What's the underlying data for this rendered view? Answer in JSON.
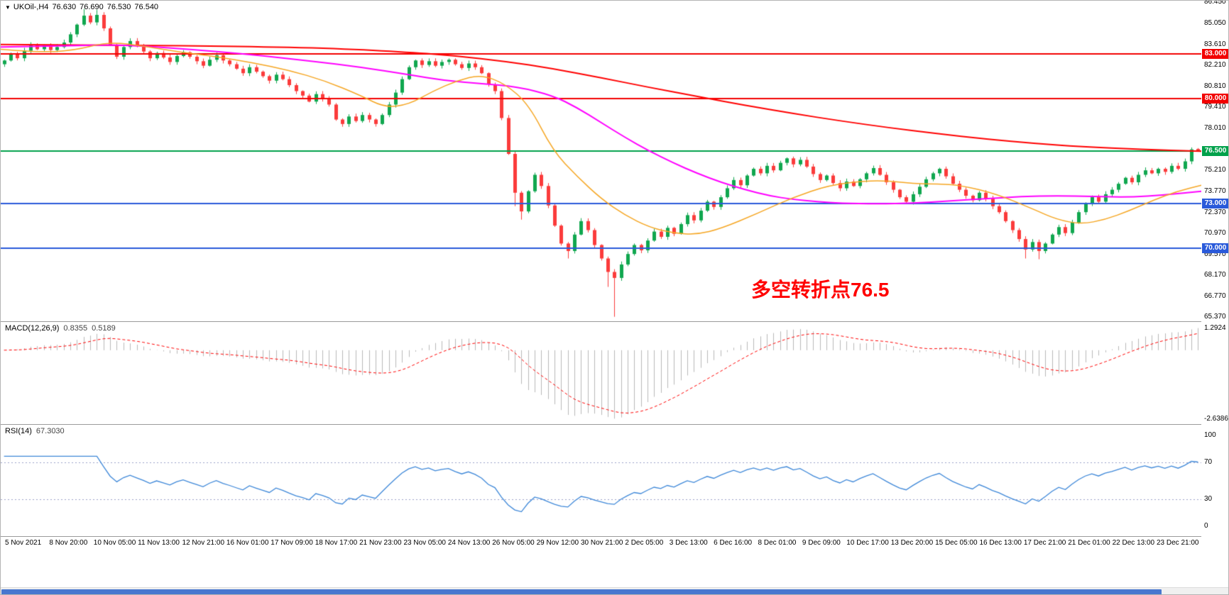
{
  "header": {
    "marker": "▼",
    "symbol": "UKOil-,H4",
    "open": "76.630",
    "high": "76.690",
    "low": "76.530",
    "close": "76.540"
  },
  "annotation": {
    "text": "多空转折点76.5",
    "color": "#ff0000"
  },
  "colors": {
    "candle_up": "#10a74f",
    "candle_down": "#fb3b3b",
    "separator": "#9b9b9b",
    "scrollbar_thumb": "#4877cf"
  },
  "chart_data": {
    "type": "candlestick",
    "title": "UKOil-,H4",
    "timeframe": "H4",
    "ylim": [
      65.1,
      86.55
    ],
    "y_ticks": [
      "86.450",
      "85.050",
      "83.610",
      "82.210",
      "80.810",
      "79.410",
      "78.010",
      "75.210",
      "73.770",
      "72.370",
      "70.970",
      "69.570",
      "68.170",
      "66.770",
      "65.370"
    ],
    "levels": [
      {
        "price": 83.0,
        "label": "83.000",
        "color": "#f20000"
      },
      {
        "price": 80.0,
        "label": "80.000",
        "color": "#f20000"
      },
      {
        "price": 76.5,
        "label": "76.500",
        "color": "#00a14b"
      },
      {
        "price": 73.0,
        "label": "73.000",
        "color": "#2a5ada"
      },
      {
        "price": 70.0,
        "label": "70.000",
        "color": "#2a5ada"
      }
    ],
    "x_labels": [
      "5 Nov 2021",
      "8 Nov 20:00",
      "10 Nov 05:00",
      "11 Nov 13:00",
      "12 Nov 21:00",
      "16 Nov 01:00",
      "17 Nov 09:00",
      "18 Nov 17:00",
      "21 Nov 23:00",
      "23 Nov 05:00",
      "24 Nov 13:00",
      "26 Nov 05:00",
      "29 Nov 12:00",
      "30 Nov 21:00",
      "2 Dec 05:00",
      "3 Dec 13:00",
      "6 Dec 16:00",
      "8 Dec 01:00",
      "9 Dec 09:00",
      "10 Dec 17:00",
      "13 Dec 20:00",
      "15 Dec 05:00",
      "16 Dec 13:00",
      "17 Dec 21:00",
      "21 Dec 01:00",
      "22 Dec 13:00",
      "23 Dec 21:00"
    ],
    "candles": {
      "first_open": 82.3,
      "closes": [
        82.55,
        82.95,
        82.7,
        83.2,
        83.6,
        83.3,
        83.55,
        83.25,
        83.45,
        83.75,
        84.3,
        84.95,
        85.55,
        85.1,
        85.6,
        84.7,
        83.6,
        82.8,
        83.45,
        83.85,
        83.5,
        83.15,
        82.7,
        83.05,
        82.75,
        82.45,
        82.85,
        83.1,
        82.8,
        82.5,
        82.2,
        82.6,
        82.9,
        82.55,
        82.3,
        82.0,
        81.7,
        82.1,
        81.8,
        81.5,
        81.2,
        81.6,
        81.3,
        80.9,
        80.5,
        80.2,
        79.8,
        80.3,
        80.0,
        79.6,
        78.6,
        78.3,
        78.8,
        78.5,
        78.9,
        78.6,
        78.3,
        78.9,
        79.6,
        80.4,
        81.3,
        82.1,
        82.55,
        82.25,
        82.5,
        82.2,
        82.45,
        82.6,
        82.3,
        82.05,
        82.35,
        82.1,
        81.7,
        80.95,
        80.5,
        78.7,
        76.3,
        73.7,
        72.45,
        73.8,
        74.9,
        74.15,
        72.85,
        71.5,
        70.3,
        69.8,
        70.9,
        71.8,
        71.2,
        70.2,
        69.3,
        68.4,
        68.0,
        68.9,
        69.6,
        70.2,
        69.85,
        70.5,
        71.1,
        70.75,
        71.35,
        70.95,
        71.6,
        72.2,
        71.85,
        72.5,
        73.1,
        72.75,
        73.4,
        74.0,
        74.55,
        74.2,
        74.85,
        75.3,
        75.0,
        75.5,
        75.2,
        75.7,
        76.0,
        75.6,
        75.9,
        75.45,
        74.95,
        74.55,
        74.85,
        74.35,
        74.0,
        74.45,
        74.15,
        74.6,
        75.0,
        75.35,
        74.9,
        74.4,
        73.9,
        73.4,
        73.1,
        73.6,
        74.1,
        74.6,
        75.0,
        75.3,
        74.8,
        74.3,
        73.9,
        73.5,
        73.2,
        73.7,
        73.3,
        72.8,
        72.4,
        71.8,
        71.2,
        70.6,
        69.9,
        70.4,
        69.8,
        70.3,
        70.9,
        71.4,
        71.0,
        71.7,
        72.4,
        73.0,
        73.4,
        73.1,
        73.6,
        73.9,
        74.3,
        74.7,
        74.4,
        74.9,
        75.2,
        75.0,
        75.3,
        75.1,
        75.5,
        75.3,
        75.8,
        76.6,
        76.54
      ],
      "overrides": [
        {
          "i": 0,
          "o": 82.3
        },
        {
          "i": 12,
          "h": 86.0
        },
        {
          "i": 14,
          "h": 85.95
        },
        {
          "i": 77,
          "l": 72.8
        },
        {
          "i": 78,
          "l": 71.9
        },
        {
          "i": 85,
          "l": 69.3
        },
        {
          "i": 91,
          "l": 67.4
        },
        {
          "i": 92,
          "l": 65.4
        },
        {
          "i": 154,
          "l": 69.3
        },
        {
          "i": 156,
          "l": 69.25
        },
        {
          "i": 180,
          "o": 76.63,
          "h": 76.69,
          "l": 76.53,
          "c": 76.54
        }
      ]
    },
    "moving_averages": [
      {
        "name": "ma-slow",
        "color": "#ff0000",
        "width": 2,
        "points": [
          [
            0,
            83.62
          ],
          [
            0.1,
            83.58
          ],
          [
            0.2,
            83.5
          ],
          [
            0.28,
            83.35
          ],
          [
            0.34,
            83.1
          ],
          [
            0.38,
            82.85
          ],
          [
            0.42,
            82.5
          ],
          [
            0.46,
            82.0
          ],
          [
            0.5,
            81.4
          ],
          [
            0.54,
            80.75
          ],
          [
            0.58,
            80.15
          ],
          [
            0.62,
            79.55
          ],
          [
            0.66,
            79.0
          ],
          [
            0.7,
            78.5
          ],
          [
            0.74,
            78.05
          ],
          [
            0.78,
            77.65
          ],
          [
            0.82,
            77.3
          ],
          [
            0.86,
            77.0
          ],
          [
            0.9,
            76.78
          ],
          [
            0.95,
            76.6
          ],
          [
            1,
            76.48
          ]
        ]
      },
      {
        "name": "ma-medium",
        "color": "#ff00ff",
        "width": 2,
        "points": [
          [
            0,
            83.45
          ],
          [
            0.06,
            83.55
          ],
          [
            0.1,
            83.6
          ],
          [
            0.14,
            83.4
          ],
          [
            0.18,
            83.15
          ],
          [
            0.22,
            82.85
          ],
          [
            0.26,
            82.5
          ],
          [
            0.3,
            82.1
          ],
          [
            0.34,
            81.6
          ],
          [
            0.37,
            81.2
          ],
          [
            0.4,
            81.0
          ],
          [
            0.43,
            80.8
          ],
          [
            0.46,
            80.2
          ],
          [
            0.48,
            79.4
          ],
          [
            0.5,
            78.4
          ],
          [
            0.52,
            77.4
          ],
          [
            0.54,
            76.5
          ],
          [
            0.56,
            75.7
          ],
          [
            0.58,
            75.0
          ],
          [
            0.6,
            74.4
          ],
          [
            0.62,
            73.9
          ],
          [
            0.64,
            73.5
          ],
          [
            0.66,
            73.25
          ],
          [
            0.68,
            73.1
          ],
          [
            0.7,
            73.0
          ],
          [
            0.73,
            72.95
          ],
          [
            0.76,
            73.0
          ],
          [
            0.79,
            73.15
          ],
          [
            0.82,
            73.3
          ],
          [
            0.85,
            73.45
          ],
          [
            0.88,
            73.5
          ],
          [
            0.91,
            73.45
          ],
          [
            0.94,
            73.4
          ],
          [
            0.97,
            73.55
          ],
          [
            1,
            73.8
          ]
        ]
      },
      {
        "name": "ma-fast",
        "color": "#f5a623",
        "width": 1.5,
        "points": [
          [
            0,
            83.3
          ],
          [
            0.03,
            83.1
          ],
          [
            0.06,
            83.2
          ],
          [
            0.09,
            83.8
          ],
          [
            0.12,
            83.5
          ],
          [
            0.15,
            83.1
          ],
          [
            0.18,
            82.8
          ],
          [
            0.21,
            82.4
          ],
          [
            0.24,
            81.9
          ],
          [
            0.27,
            81.2
          ],
          [
            0.3,
            80.2
          ],
          [
            0.32,
            79.4
          ],
          [
            0.34,
            79.6
          ],
          [
            0.36,
            80.5
          ],
          [
            0.38,
            81.2
          ],
          [
            0.4,
            81.6
          ],
          [
            0.42,
            81.0
          ],
          [
            0.44,
            79.6
          ],
          [
            0.46,
            76.5
          ],
          [
            0.48,
            74.8
          ],
          [
            0.5,
            73.3
          ],
          [
            0.52,
            72.2
          ],
          [
            0.54,
            71.4
          ],
          [
            0.56,
            71.0
          ],
          [
            0.58,
            70.9
          ],
          [
            0.6,
            71.3
          ],
          [
            0.63,
            72.3
          ],
          [
            0.66,
            73.4
          ],
          [
            0.69,
            74.2
          ],
          [
            0.72,
            74.5
          ],
          [
            0.74,
            74.5
          ],
          [
            0.76,
            74.3
          ],
          [
            0.78,
            74.3
          ],
          [
            0.8,
            74.2
          ],
          [
            0.83,
            73.6
          ],
          [
            0.86,
            72.6
          ],
          [
            0.88,
            71.9
          ],
          [
            0.9,
            71.6
          ],
          [
            0.92,
            71.9
          ],
          [
            0.94,
            72.5
          ],
          [
            0.96,
            73.2
          ],
          [
            0.98,
            73.8
          ],
          [
            1,
            74.2
          ]
        ]
      }
    ],
    "indicators": {
      "macd": {
        "label": "MACD(12,26,9)",
        "fast": 12,
        "slow": 26,
        "signal": 9,
        "value": "0.8355",
        "signal_value": "0.5189",
        "axis_max": "1.2924",
        "axis_min": "-2.6386",
        "hist_color": "#b8b8b8",
        "signal_color": "#ff0000"
      },
      "rsi": {
        "label": "RSI(14)",
        "period": 14,
        "value": "67.3030",
        "color": "#3d87d8",
        "level_color": "#9aa0c8",
        "levels": [
          70,
          30
        ],
        "axis_labels": [
          {
            "v": 100,
            "label": "100"
          },
          {
            "v": 70,
            "label": "70"
          },
          {
            "v": 30,
            "label": "30"
          },
          {
            "v": 0,
            "label": "0"
          }
        ]
      }
    }
  }
}
